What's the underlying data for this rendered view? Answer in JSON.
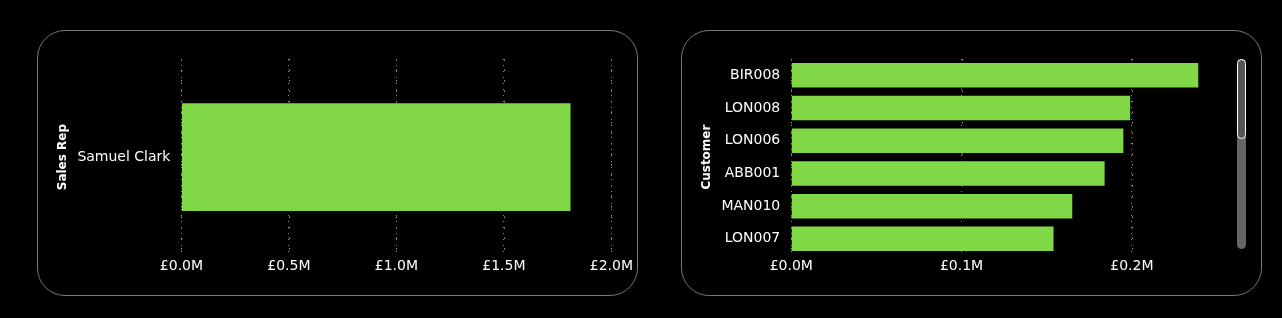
{
  "chart_data": [
    {
      "type": "bar",
      "orientation": "horizontal",
      "ylabel": "Sales Rep",
      "categories": [
        "Samuel Clark"
      ],
      "values": [
        1.81
      ],
      "color": "#80d847",
      "xlim": [
        0,
        2.0
      ],
      "xticks": [
        {
          "value": 0,
          "label": "£0.0M"
        },
        {
          "value": 0.5,
          "label": "£0.5M"
        },
        {
          "value": 1.0,
          "label": "£1.0M"
        },
        {
          "value": 1.5,
          "label": "£1.5M"
        },
        {
          "value": 2.0,
          "label": "£2.0M"
        }
      ],
      "grid": "x",
      "legend": false
    },
    {
      "type": "bar",
      "orientation": "horizontal",
      "ylabel": "Customer",
      "categories": [
        "BIR008",
        "LON008",
        "LON006",
        "ABB001",
        "MAN010",
        "LON007"
      ],
      "values": [
        0.239,
        0.199,
        0.195,
        0.184,
        0.165,
        0.154
      ],
      "color": "#80d847",
      "xlim": [
        0,
        0.24
      ],
      "xticks": [
        {
          "value": 0,
          "label": "£0.0M"
        },
        {
          "value": 0.1,
          "label": "£0.1M"
        },
        {
          "value": 0.2,
          "label": "£0.2M"
        }
      ],
      "grid": "x",
      "legend": false
    }
  ]
}
